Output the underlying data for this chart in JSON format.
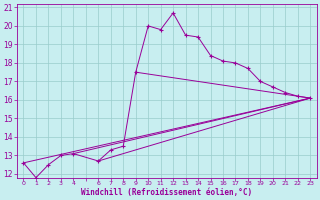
{
  "xlabel": "Windchill (Refroidissement éolien,°C)",
  "xlim": [
    -0.5,
    23.5
  ],
  "ylim": [
    11.8,
    21.2
  ],
  "yticks": [
    12,
    13,
    14,
    15,
    16,
    17,
    18,
    19,
    20,
    21
  ],
  "xticks_shown": [
    0,
    1,
    2,
    3,
    4,
    6,
    7,
    8,
    9,
    10,
    11,
    12,
    13,
    14,
    15,
    16,
    17,
    18,
    19,
    20,
    21,
    22,
    23
  ],
  "bg_color": "#c8eef0",
  "line_color": "#990099",
  "grid_color": "#99cccc",
  "curve_x": [
    0,
    1,
    2,
    3,
    4,
    6,
    7,
    8,
    9,
    10,
    11,
    12,
    13,
    14,
    15,
    16,
    17,
    18,
    19,
    20,
    21,
    22,
    23
  ],
  "curve_y": [
    12.6,
    11.8,
    12.5,
    13.0,
    13.1,
    12.7,
    13.3,
    13.5,
    17.5,
    20.0,
    19.8,
    20.7,
    19.5,
    19.4,
    18.4,
    18.1,
    18.0,
    17.7,
    17.0,
    16.7,
    16.4,
    16.2,
    16.1
  ],
  "straight_lines": [
    {
      "x": [
        0,
        23
      ],
      "y": [
        12.6,
        16.1
      ]
    },
    {
      "x": [
        4,
        23
      ],
      "y": [
        13.1,
        16.1
      ]
    },
    {
      "x": [
        6,
        23
      ],
      "y": [
        12.7,
        16.1
      ]
    },
    {
      "x": [
        9,
        23
      ],
      "y": [
        17.5,
        16.1
      ]
    }
  ]
}
